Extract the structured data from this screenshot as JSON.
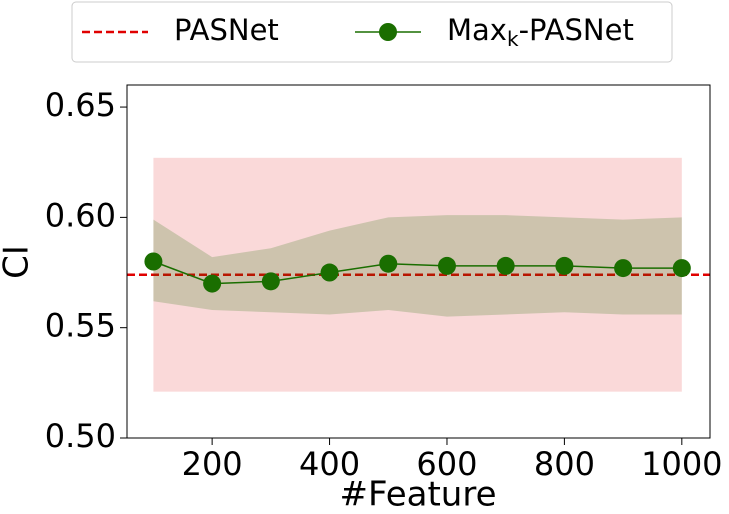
{
  "chart_data": {
    "type": "line",
    "x_label": "#Feature",
    "y_label": "CI",
    "x": [
      100,
      200,
      300,
      400,
      500,
      600,
      700,
      800,
      900,
      1000
    ],
    "xlim": [
      55,
      1048
    ],
    "xticks": [
      200,
      400,
      600,
      800,
      1000
    ],
    "ylim": [
      0.5,
      0.66
    ],
    "yticks": [
      {
        "value": 0.5,
        "label": "0.50"
      },
      {
        "value": 0.55,
        "label": "0.55"
      },
      {
        "value": 0.6,
        "label": "0.60"
      },
      {
        "value": 0.65,
        "label": "0.65"
      }
    ],
    "baseline": {
      "name": "PASNet",
      "color": "#e00000",
      "value": 0.574,
      "lower": 0.521,
      "upper": 0.627
    },
    "series": [
      {
        "name": "Maxk-PASNet",
        "color": "#1a6e00",
        "values": [
          0.58,
          0.57,
          0.571,
          0.575,
          0.579,
          0.578,
          0.578,
          0.578,
          0.577,
          0.577
        ],
        "lower": [
          0.562,
          0.558,
          0.557,
          0.556,
          0.558,
          0.555,
          0.556,
          0.557,
          0.556,
          0.556
        ],
        "upper": [
          0.599,
          0.582,
          0.586,
          0.594,
          0.6,
          0.601,
          0.601,
          0.6,
          0.599,
          0.6
        ]
      }
    ]
  }
}
